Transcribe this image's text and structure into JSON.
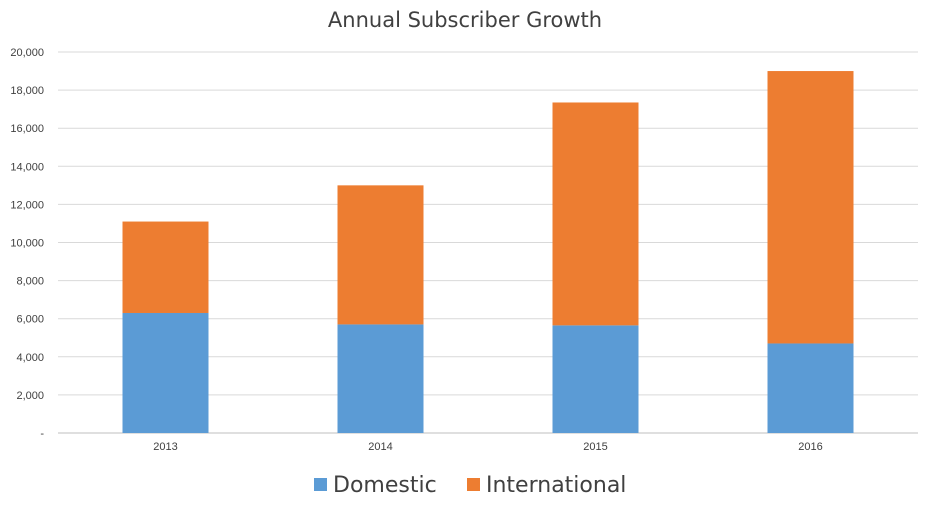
{
  "chart_data": {
    "type": "bar",
    "stacked": true,
    "title": "Annual Subscriber Growth",
    "xlabel": "",
    "ylabel": "",
    "categories": [
      "2013",
      "2014",
      "2015",
      "2016"
    ],
    "series": [
      {
        "name": "Domestic",
        "color": "#5b9bd5",
        "values": [
          6300,
          5700,
          5650,
          4700
        ]
      },
      {
        "name": "International",
        "color": "#ed7d31",
        "values": [
          4800,
          7300,
          11700,
          14300
        ]
      }
    ],
    "ylim": [
      0,
      20000
    ],
    "yticks": [
      0,
      2000,
      4000,
      6000,
      8000,
      10000,
      12000,
      14000,
      16000,
      18000,
      20000
    ],
    "ytick_labels": [
      "-",
      "2,000",
      "4,000",
      "6,000",
      "8,000",
      "10,000",
      "12,000",
      "14,000",
      "16,000",
      "18,000",
      "20,000"
    ],
    "grid": true,
    "legend": "bottom"
  }
}
